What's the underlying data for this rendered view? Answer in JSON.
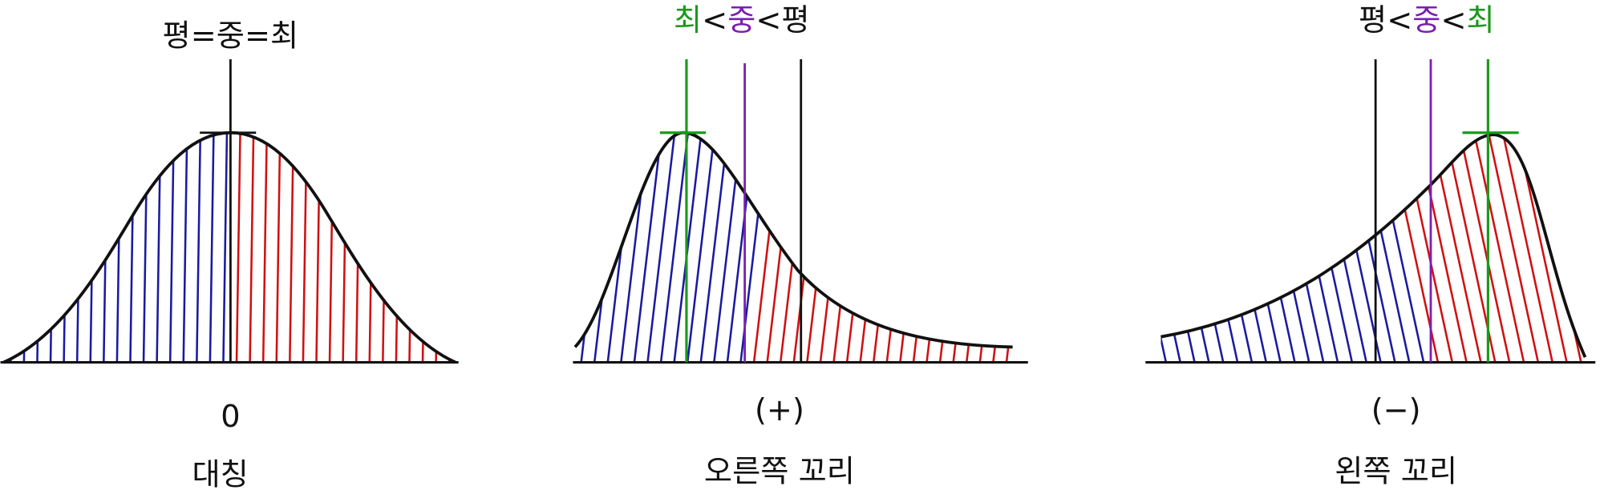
{
  "panels": [
    {
      "label_parts": [
        "평",
        "=",
        "중",
        "=",
        "최"
      ],
      "sign": "0",
      "caption": "대칭"
    },
    {
      "label_parts": [
        "최",
        "<",
        "중",
        "<",
        "평"
      ],
      "sign": "(+)",
      "caption": "오른쪽 꼬리"
    },
    {
      "label_parts": [
        "평",
        "<",
        "중",
        "<",
        "최"
      ],
      "sign": "(−)",
      "caption": "왼쪽 꼬리"
    }
  ]
}
